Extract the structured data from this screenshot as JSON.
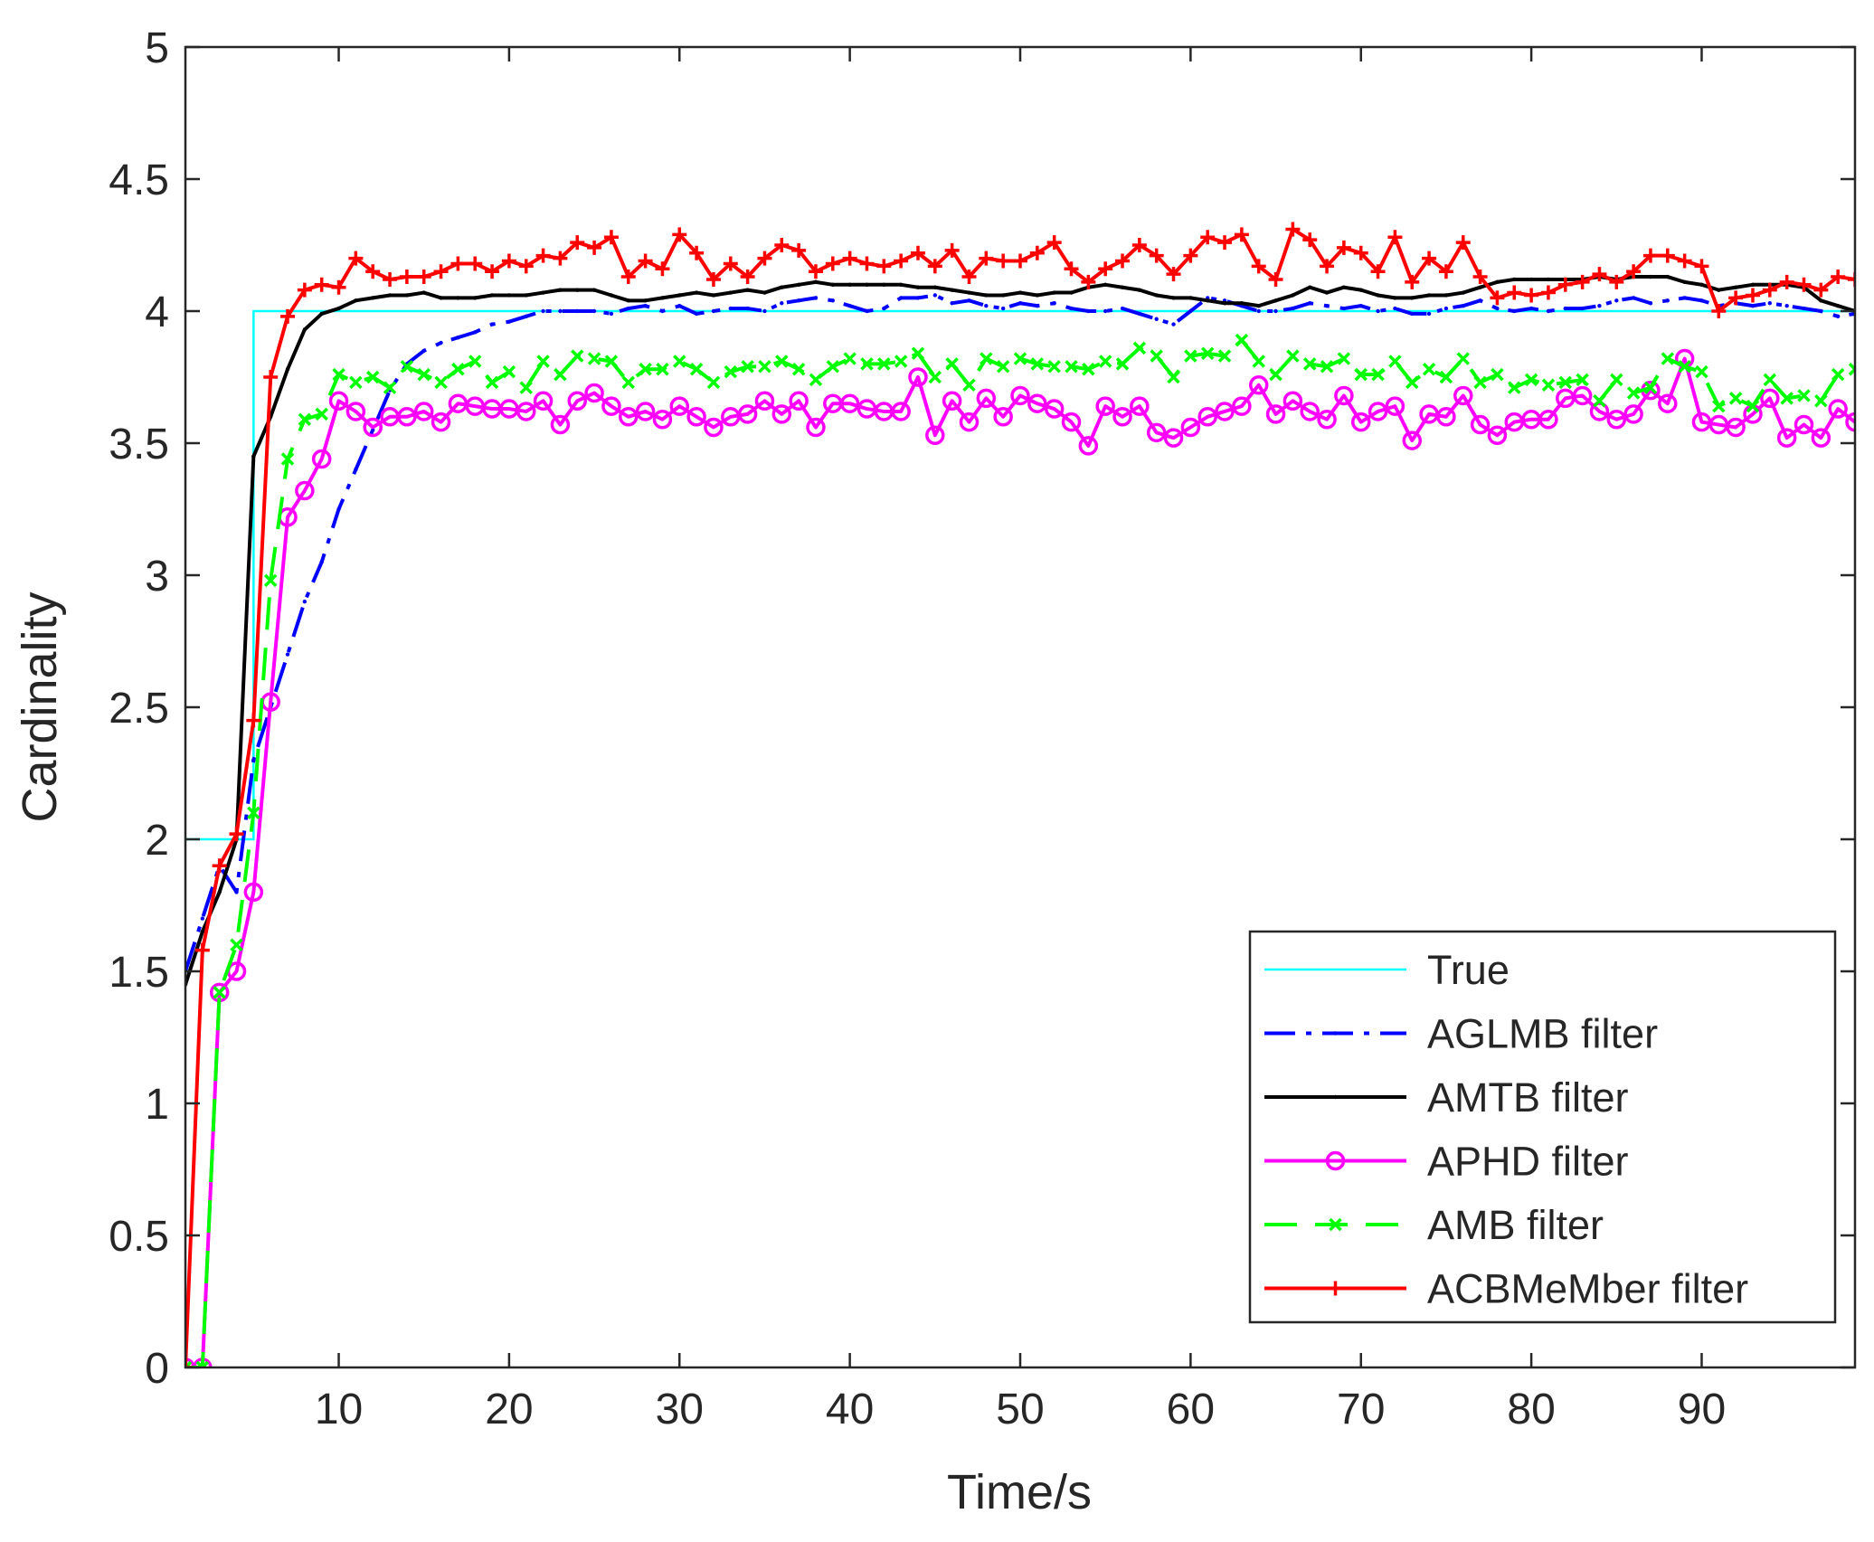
{
  "chart_data": {
    "type": "line",
    "xlabel": "Time/s",
    "ylabel": "Cardinality",
    "xlim": [
      1,
      99
    ],
    "ylim": [
      0,
      5
    ],
    "xticks": [
      10,
      20,
      30,
      40,
      50,
      60,
      70,
      80,
      90
    ],
    "yticks": [
      0,
      0.5,
      1,
      1.5,
      2,
      2.5,
      3,
      3.5,
      4,
      4.5,
      5
    ],
    "ytick_labels": [
      "0",
      "0.5",
      "1",
      "1.5",
      "2",
      "2.5",
      "3",
      "3.5",
      "4",
      "4.5",
      "5"
    ],
    "grid": false,
    "legend_position": "lower right",
    "x": [
      1,
      2,
      3,
      4,
      5,
      6,
      7,
      8,
      9,
      10,
      11,
      12,
      13,
      14,
      15,
      16,
      17,
      18,
      19,
      20,
      21,
      22,
      23,
      24,
      25,
      26,
      27,
      28,
      29,
      30,
      31,
      32,
      33,
      34,
      35,
      36,
      37,
      38,
      39,
      40,
      41,
      42,
      43,
      44,
      45,
      46,
      47,
      48,
      49,
      50,
      51,
      52,
      53,
      54,
      55,
      56,
      57,
      58,
      59,
      60,
      61,
      62,
      63,
      64,
      65,
      66,
      67,
      68,
      69,
      70,
      71,
      72,
      73,
      74,
      75,
      76,
      77,
      78,
      79,
      80,
      81,
      82,
      83,
      84,
      85,
      86,
      87,
      88,
      89,
      90,
      91,
      92,
      93,
      94,
      95,
      96,
      97,
      98,
      99
    ],
    "series": [
      {
        "name": "True",
        "color": "#00FFFF",
        "style": "solid",
        "marker": "none",
        "step": true,
        "values": [
          2,
          2,
          2,
          2,
          4,
          4,
          4,
          4,
          4,
          4,
          4,
          4,
          4,
          4,
          4,
          4,
          4,
          4,
          4,
          4,
          4,
          4,
          4,
          4,
          4,
          4,
          4,
          4,
          4,
          4,
          4,
          4,
          4,
          4,
          4,
          4,
          4,
          4,
          4,
          4,
          4,
          4,
          4,
          4,
          4,
          4,
          4,
          4,
          4,
          4,
          4,
          4,
          4,
          4,
          4,
          4,
          4,
          4,
          4,
          4,
          4,
          4,
          4,
          4,
          4,
          4,
          4,
          4,
          4,
          4,
          4,
          4,
          4,
          4,
          4,
          4,
          4,
          4,
          4,
          4,
          4,
          4,
          4,
          4,
          4,
          4,
          4,
          4,
          4,
          4,
          4,
          4,
          4,
          4,
          4,
          4,
          4,
          4,
          4
        ]
      },
      {
        "name": "AGLMB filter",
        "color": "#0000FF",
        "style": "dashdot",
        "marker": "dot",
        "values": [
          1.5,
          1.7,
          1.9,
          1.8,
          2.3,
          2.5,
          2.7,
          2.9,
          3.05,
          3.25,
          3.4,
          3.55,
          3.7,
          3.8,
          3.85,
          3.88,
          3.9,
          3.92,
          3.95,
          3.96,
          3.98,
          4.0,
          4.0,
          4.0,
          4.0,
          3.99,
          4.01,
          4.02,
          4.0,
          4.02,
          3.99,
          4.0,
          4.01,
          4.01,
          4.0,
          4.03,
          4.04,
          4.05,
          4.04,
          4.02,
          4.0,
          4.01,
          4.05,
          4.05,
          4.06,
          4.03,
          4.04,
          4.02,
          4.01,
          4.03,
          4.02,
          4.03,
          4.01,
          4.0,
          4.0,
          4.01,
          3.99,
          3.97,
          3.95,
          4.0,
          4.05,
          4.04,
          4.02,
          4.0,
          4.0,
          4.01,
          4.03,
          4.02,
          4.01,
          4.02,
          4.0,
          4.01,
          3.99,
          3.99,
          4.01,
          4.02,
          4.04,
          4.01,
          4.0,
          4.01,
          4.0,
          4.01,
          4.01,
          4.02,
          4.04,
          4.05,
          4.03,
          4.04,
          4.05,
          4.04,
          4.02,
          4.03,
          4.02,
          4.03,
          4.02,
          4.01,
          4.0,
          3.98,
          3.99
        ]
      },
      {
        "name": "AMTB filter",
        "color": "#000000",
        "style": "solid",
        "marker": "dot",
        "values": [
          1.45,
          1.65,
          1.8,
          2.0,
          3.45,
          3.6,
          3.78,
          3.93,
          3.99,
          4.01,
          4.04,
          4.05,
          4.06,
          4.06,
          4.07,
          4.05,
          4.05,
          4.05,
          4.06,
          4.06,
          4.06,
          4.07,
          4.08,
          4.08,
          4.08,
          4.06,
          4.04,
          4.04,
          4.05,
          4.06,
          4.07,
          4.06,
          4.07,
          4.08,
          4.07,
          4.09,
          4.1,
          4.11,
          4.1,
          4.1,
          4.1,
          4.1,
          4.1,
          4.09,
          4.09,
          4.08,
          4.07,
          4.06,
          4.06,
          4.07,
          4.06,
          4.07,
          4.07,
          4.09,
          4.1,
          4.09,
          4.08,
          4.06,
          4.05,
          4.05,
          4.04,
          4.03,
          4.03,
          4.02,
          4.04,
          4.06,
          4.09,
          4.07,
          4.09,
          4.08,
          4.06,
          4.05,
          4.05,
          4.06,
          4.06,
          4.07,
          4.09,
          4.11,
          4.12,
          4.12,
          4.12,
          4.12,
          4.12,
          4.13,
          4.12,
          4.13,
          4.13,
          4.13,
          4.11,
          4.1,
          4.08,
          4.09,
          4.1,
          4.1,
          4.1,
          4.09,
          4.04,
          4.02,
          4.0
        ]
      },
      {
        "name": "APHD filter",
        "color": "#FF00FF",
        "style": "solid",
        "marker": "circle",
        "values": [
          0.0,
          0.0,
          1.42,
          1.5,
          1.8,
          2.52,
          3.22,
          3.32,
          3.44,
          3.66,
          3.62,
          3.56,
          3.6,
          3.6,
          3.62,
          3.58,
          3.65,
          3.64,
          3.63,
          3.63,
          3.62,
          3.66,
          3.57,
          3.66,
          3.69,
          3.64,
          3.6,
          3.62,
          3.59,
          3.64,
          3.6,
          3.56,
          3.6,
          3.61,
          3.66,
          3.61,
          3.66,
          3.56,
          3.65,
          3.65,
          3.63,
          3.62,
          3.62,
          3.75,
          3.53,
          3.66,
          3.58,
          3.67,
          3.6,
          3.68,
          3.65,
          3.63,
          3.58,
          3.49,
          3.64,
          3.6,
          3.64,
          3.54,
          3.52,
          3.56,
          3.6,
          3.62,
          3.64,
          3.72,
          3.61,
          3.66,
          3.62,
          3.59,
          3.68,
          3.58,
          3.62,
          3.64,
          3.51,
          3.61,
          3.6,
          3.68,
          3.57,
          3.53,
          3.58,
          3.59,
          3.59,
          3.67,
          3.68,
          3.62,
          3.59,
          3.61,
          3.7,
          3.65,
          3.82,
          3.58,
          3.57,
          3.56,
          3.61,
          3.67,
          3.52,
          3.57,
          3.52,
          3.63,
          3.58
        ]
      },
      {
        "name": "AMB filter",
        "color": "#00FF00",
        "style": "dashed",
        "marker": "x",
        "values": [
          0.0,
          0.0,
          1.42,
          1.6,
          2.1,
          2.98,
          3.44,
          3.59,
          3.61,
          3.76,
          3.73,
          3.75,
          3.71,
          3.79,
          3.76,
          3.73,
          3.78,
          3.81,
          3.73,
          3.77,
          3.71,
          3.81,
          3.76,
          3.83,
          3.82,
          3.81,
          3.73,
          3.78,
          3.78,
          3.81,
          3.78,
          3.73,
          3.77,
          3.79,
          3.79,
          3.81,
          3.78,
          3.74,
          3.79,
          3.82,
          3.8,
          3.8,
          3.81,
          3.84,
          3.75,
          3.8,
          3.72,
          3.82,
          3.79,
          3.82,
          3.8,
          3.79,
          3.79,
          3.78,
          3.81,
          3.8,
          3.86,
          3.83,
          3.75,
          3.83,
          3.84,
          3.83,
          3.89,
          3.81,
          3.76,
          3.83,
          3.8,
          3.79,
          3.82,
          3.76,
          3.76,
          3.81,
          3.73,
          3.78,
          3.75,
          3.82,
          3.73,
          3.76,
          3.71,
          3.74,
          3.72,
          3.73,
          3.74,
          3.66,
          3.74,
          3.69,
          3.71,
          3.82,
          3.79,
          3.77,
          3.64,
          3.67,
          3.64,
          3.74,
          3.67,
          3.68,
          3.66,
          3.76,
          3.78
        ]
      },
      {
        "name": "ACBMeMber filter",
        "color": "#FF0000",
        "style": "solid",
        "marker": "plus",
        "values": [
          0.0,
          1.58,
          1.9,
          2.02,
          2.45,
          3.75,
          3.98,
          4.08,
          4.1,
          4.09,
          4.2,
          4.15,
          4.12,
          4.13,
          4.13,
          4.15,
          4.18,
          4.18,
          4.15,
          4.19,
          4.17,
          4.21,
          4.2,
          4.26,
          4.24,
          4.28,
          4.13,
          4.19,
          4.16,
          4.29,
          4.22,
          4.12,
          4.18,
          4.13,
          4.2,
          4.25,
          4.23,
          4.15,
          4.18,
          4.2,
          4.18,
          4.17,
          4.19,
          4.22,
          4.17,
          4.23,
          4.13,
          4.2,
          4.19,
          4.19,
          4.22,
          4.26,
          4.16,
          4.11,
          4.16,
          4.19,
          4.25,
          4.21,
          4.14,
          4.21,
          4.28,
          4.26,
          4.29,
          4.17,
          4.12,
          4.31,
          4.27,
          4.17,
          4.24,
          4.22,
          4.15,
          4.28,
          4.11,
          4.2,
          4.15,
          4.26,
          4.13,
          4.05,
          4.07,
          4.06,
          4.07,
          4.1,
          4.11,
          4.14,
          4.11,
          4.15,
          4.21,
          4.21,
          4.19,
          4.17,
          4.0,
          4.05,
          4.06,
          4.08,
          4.11,
          4.1,
          4.08,
          4.13,
          4.12
        ]
      }
    ]
  }
}
